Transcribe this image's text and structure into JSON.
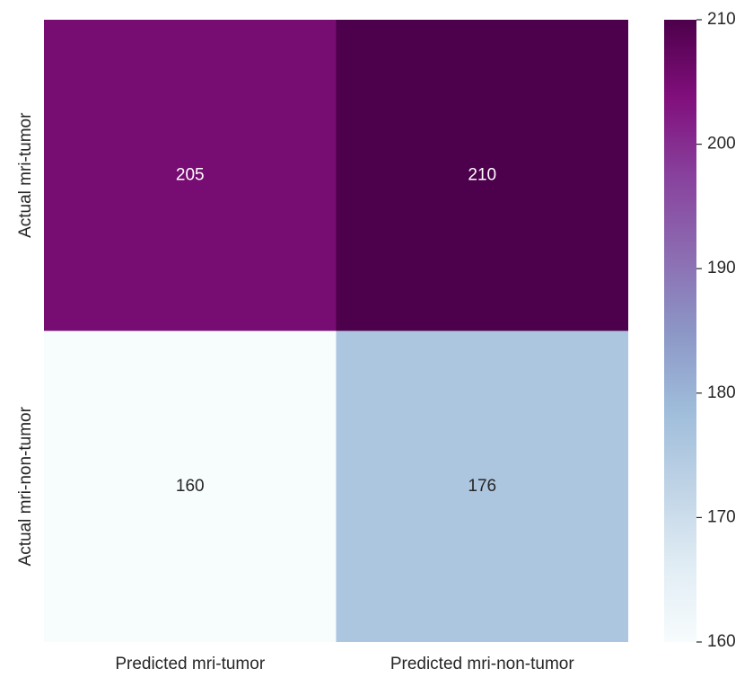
{
  "chart_data": {
    "type": "heatmap",
    "x_categories": [
      "Predicted mri-tumor",
      "Predicted mri-non-tumor"
    ],
    "y_categories": [
      "Actual mri-tumor",
      "Actual mri-non-tumor"
    ],
    "values": [
      [
        205,
        210
      ],
      [
        160,
        176
      ]
    ],
    "colorbar": {
      "min": 160,
      "max": 210,
      "ticks": [
        160,
        170,
        180,
        190,
        200,
        210
      ],
      "colormap": "BuPu",
      "colors": [
        "#f7fcfd",
        "#e0ecf4",
        "#bfd3e6",
        "#9ebcda",
        "#8c96c6",
        "#8c6bb1",
        "#88419d",
        "#810f7c",
        "#4d004b"
      ]
    },
    "annotation_colors": {
      "dark_cell_text": "#ffffff",
      "light_cell_text": "#262626"
    },
    "title": "",
    "xlabel": "",
    "ylabel": "",
    "grid": false
  }
}
